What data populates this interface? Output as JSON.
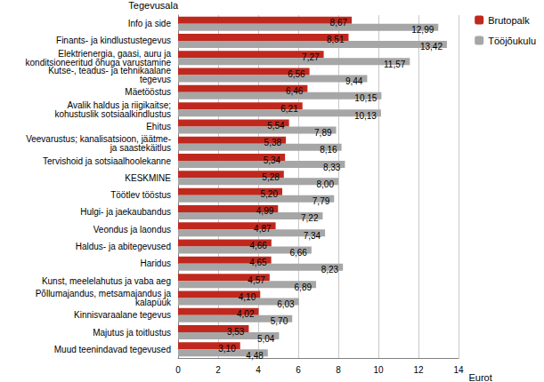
{
  "chart_data": {
    "type": "bar",
    "orientation": "horizontal",
    "y_label": "Tegevusala",
    "x_label": "Eurot",
    "categories": [
      "Info ja side",
      "Finants- ja kindlustustegevus",
      "Elektrienergia, gaasi, auru ja konditsioneeritud õhuga varustamine",
      "Kutse-, teadus- ja tehnikaalane tegevus",
      "Mäetööstus",
      "Avalik haldus ja riigikaitse; kohustuslik sotsiaalkindlustus",
      "Ehitus",
      "Veevarustus; kanalisatsioon, jäätme- ja saastekäitlus",
      "Tervishoid ja sotsiaalhoolekanne",
      "KESKMINE",
      "Töötlev tööstus",
      "Hulgi- ja jaekaubandus",
      "Veondus ja laondus",
      "Haldus- ja abitegevused",
      "Haridus",
      "Kunst, meelelahutus ja vaba aeg",
      "Põllumajandus, metsamajandus ja kalapüük",
      "Kinnisvaraalane tegevus",
      "Majutus ja toitlustus",
      "Muud teenindavad tegevused"
    ],
    "series": [
      {
        "name": "Brutopalk",
        "color": "#c0281e",
        "values": [
          8.67,
          8.51,
          7.27,
          6.56,
          6.46,
          6.21,
          5.54,
          5.38,
          5.34,
          5.28,
          5.2,
          4.99,
          4.87,
          4.66,
          4.65,
          4.57,
          4.1,
          4.02,
          3.53,
          3.1
        ],
        "value_labels": [
          "8,67",
          "8,51",
          "7,27",
          "6,56",
          "6,46",
          "6,21",
          "5,54",
          "5,38",
          "5,34",
          "5,28",
          "5,20",
          "4,99",
          "4,87",
          "4,66",
          "4,65",
          "4,57",
          "4,10",
          "4,02",
          "3,53",
          "3,10"
        ]
      },
      {
        "name": "Tööjõukulu",
        "color": "#a6a6a6",
        "values": [
          12.99,
          13.42,
          11.57,
          9.44,
          10.15,
          10.13,
          7.89,
          8.16,
          8.33,
          8.0,
          7.79,
          7.22,
          7.34,
          6.66,
          8.23,
          6.89,
          6.03,
          5.7,
          5.04,
          4.48
        ],
        "value_labels": [
          "12,99",
          "13,42",
          "11,57",
          "9,44",
          "10,15",
          "10,13",
          "7,89",
          "8,16",
          "8,33",
          "8,00",
          "7,79",
          "7,22",
          "7,34",
          "6,66",
          "8,23",
          "6,89",
          "6,03",
          "5,70",
          "5,04",
          "4,48"
        ]
      }
    ],
    "xlim": [
      0,
      14
    ],
    "xticks": [
      0,
      2,
      4,
      6,
      8,
      10,
      12,
      14
    ],
    "grid": true,
    "legend": "top-right",
    "data_labels": true
  }
}
